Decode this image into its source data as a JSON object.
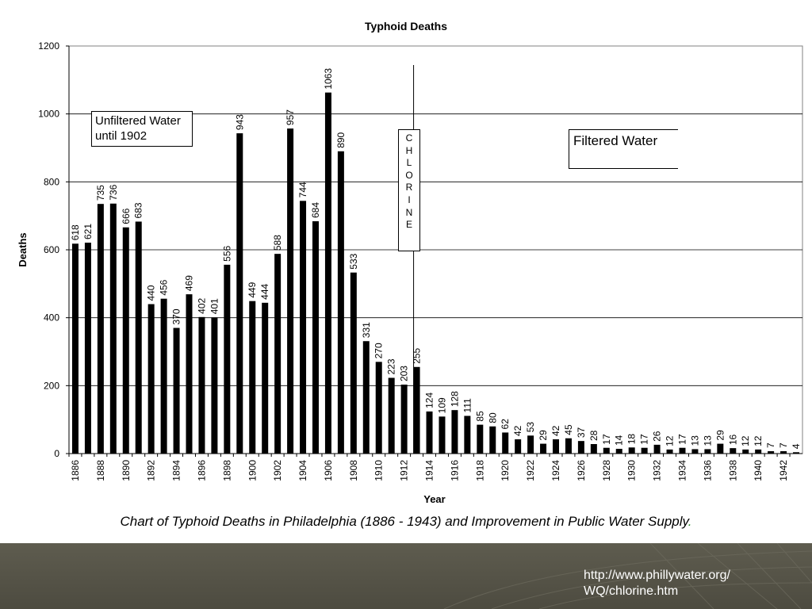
{
  "chart_data": {
    "type": "bar",
    "title": "Typhoid Deaths",
    "xlabel": "Year",
    "ylabel": "Deaths",
    "ylim": [
      0,
      1200
    ],
    "yticks": [
      0,
      200,
      400,
      600,
      800,
      1000,
      1200
    ],
    "grid": true,
    "categories": [
      1886,
      1887,
      1888,
      1889,
      1890,
      1891,
      1892,
      1893,
      1894,
      1895,
      1896,
      1897,
      1898,
      1899,
      1900,
      1901,
      1902,
      1903,
      1904,
      1905,
      1906,
      1907,
      1908,
      1909,
      1910,
      1911,
      1912,
      1913,
      1914,
      1915,
      1916,
      1917,
      1918,
      1919,
      1920,
      1921,
      1922,
      1923,
      1924,
      1925,
      1926,
      1927,
      1928,
      1929,
      1930,
      1931,
      1932,
      1933,
      1934,
      1935,
      1936,
      1937,
      1938,
      1939,
      1940,
      1941,
      1942,
      1943
    ],
    "xtick_labels": [
      "1886",
      "1888",
      "1890",
      "1892",
      "1894",
      "1896",
      "1898",
      "1900",
      "1902",
      "1904",
      "1906",
      "1908",
      "1910",
      "1912",
      "1914",
      "1916",
      "1918",
      "1920",
      "1922",
      "1924",
      "1926",
      "1928",
      "1930",
      "1932",
      "1934",
      "1936",
      "1938",
      "1940",
      "1942"
    ],
    "values": [
      618,
      621,
      735,
      736,
      666,
      683,
      440,
      456,
      370,
      469,
      402,
      401,
      556,
      943,
      449,
      444,
      588,
      957,
      744,
      684,
      1063,
      890,
      533,
      331,
      270,
      223,
      203,
      255,
      124,
      109,
      128,
      111,
      85,
      80,
      62,
      42,
      53,
      29,
      42,
      45,
      37,
      28,
      17,
      14,
      18,
      17,
      26,
      12,
      17,
      13,
      13,
      29,
      16,
      12,
      12,
      7,
      7,
      4
    ],
    "bar_color": "#000000",
    "annotations": {
      "unfiltered": "Unfiltered Water\nuntil 1902",
      "filtered": "Filtered Water",
      "chlorine_letters": [
        "C",
        "H",
        "L",
        "O",
        "R",
        "I",
        "N",
        "E"
      ]
    }
  },
  "caption": "Chart of Typhoid Deaths in Philadelphia (1886 - 1943) and Improvement in Public Water Supply",
  "caption_end": ".",
  "source_link": "http://www.phillywater.org/\nWQ/chlorine.htm"
}
